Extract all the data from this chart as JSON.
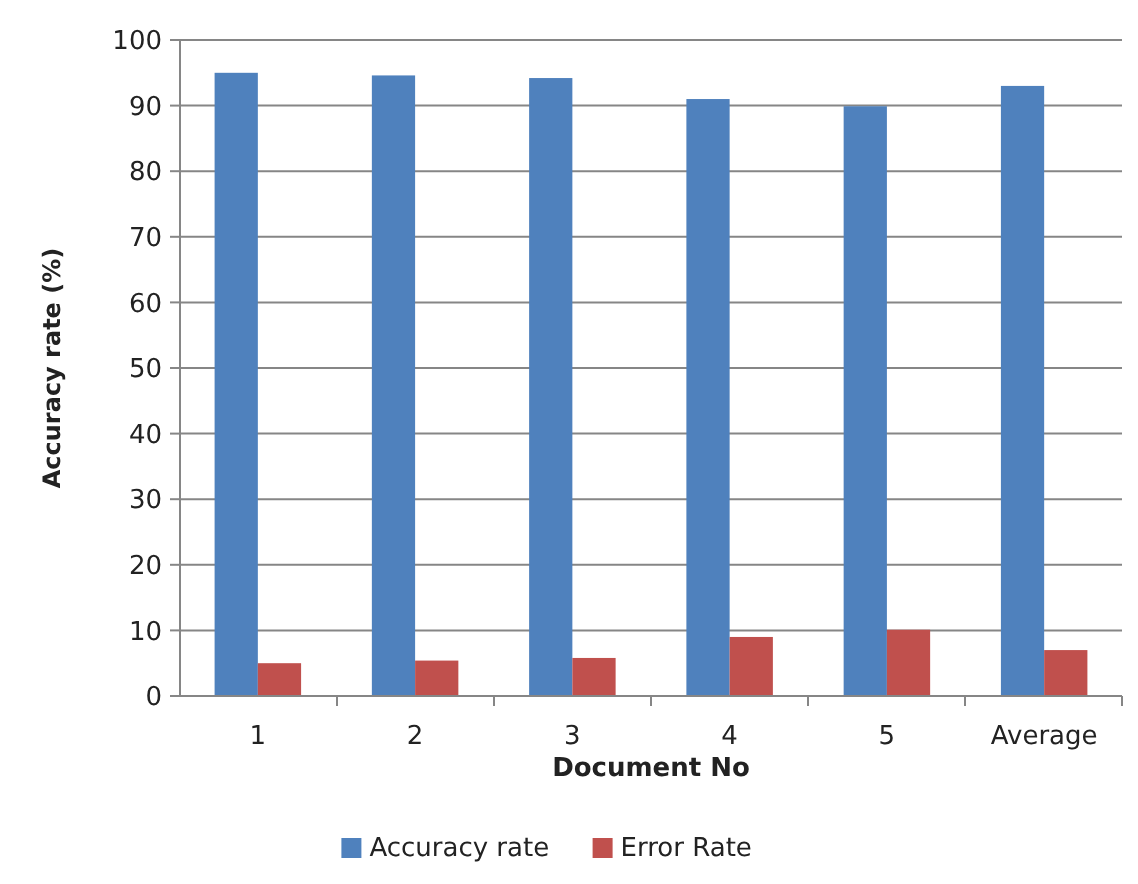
{
  "chart_data": {
    "type": "bar",
    "xlabel": "Document No",
    "ylabel": "Accuracy rate (%)",
    "categories": [
      "1",
      "2",
      "3",
      "4",
      "5",
      "Average"
    ],
    "series": [
      {
        "name": "Accuracy rate",
        "color": "#4f81bd",
        "values": [
          95,
          94.6,
          94.2,
          91,
          89.9,
          93
        ]
      },
      {
        "name": "Error Rate",
        "color": "#c0504d",
        "values": [
          5,
          5.4,
          5.8,
          9,
          10.1,
          7
        ]
      }
    ],
    "ylim": [
      0,
      100
    ],
    "yticks": [
      0,
      10,
      20,
      30,
      40,
      50,
      60,
      70,
      80,
      90,
      100
    ],
    "grid": "y",
    "legend": "bottom"
  }
}
